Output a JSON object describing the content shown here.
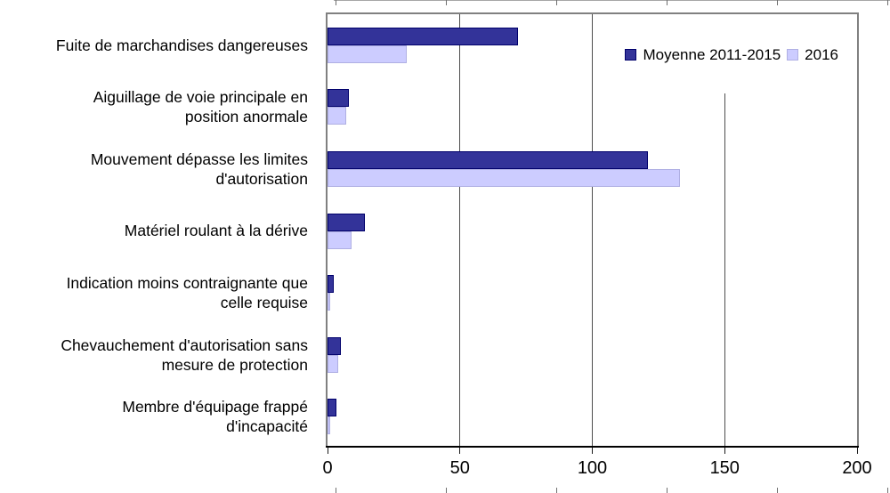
{
  "chart_data": {
    "type": "bar",
    "orientation": "horizontal",
    "categories": [
      "Fuite de marchandises dangereuses",
      "Aiguillage de voie principale en position anormale",
      "Mouvement dépasse les limites d'autorisation",
      "Matériel roulant à la dérive",
      "Indication moins contraignante que celle requise",
      "Chevauchement d'autorisation sans mesure de protection",
      "Membre d'équipage frappé d'incapacité"
    ],
    "category_display_lines": [
      [
        "Fuite de marchandises dangereuses"
      ],
      [
        "Aiguillage de voie principale en",
        "position anormale"
      ],
      [
        "Mouvement dépasse les limites",
        "d'autorisation"
      ],
      [
        "Matériel roulant à la dérive"
      ],
      [
        "Indication moins contraignante que",
        "celle requise"
      ],
      [
        "Chevauchement d'autorisation sans",
        "mesure de protection"
      ],
      [
        "Membre d'équipage frappé",
        "d'incapacité"
      ]
    ],
    "series": [
      {
        "name": "Moyenne 2011-2015",
        "color": "#333399",
        "border_color": "#00006B",
        "values": [
          72,
          8,
          121,
          14,
          2.5,
          5,
          3.5
        ]
      },
      {
        "name": "2016",
        "color": "#CCCCFF",
        "border_color": "#AFAFE3",
        "values": [
          30,
          7,
          133,
          9,
          1,
          4,
          1
        ]
      }
    ],
    "xlim": [
      0,
      200
    ],
    "x_ticks": [
      "0",
      "50",
      "100",
      "150",
      "200"
    ],
    "x_tick_values": [
      0,
      50,
      100,
      150,
      200
    ],
    "grid": true,
    "legend_position": "top-right"
  },
  "colors": {
    "series_mean": "#333399",
    "series_2016": "#CCCCFF",
    "plot_border": "#808080",
    "gridline": "#4D4D4D",
    "axis_line": "#000000",
    "text": "#000000",
    "background": "#FFFFFF"
  }
}
